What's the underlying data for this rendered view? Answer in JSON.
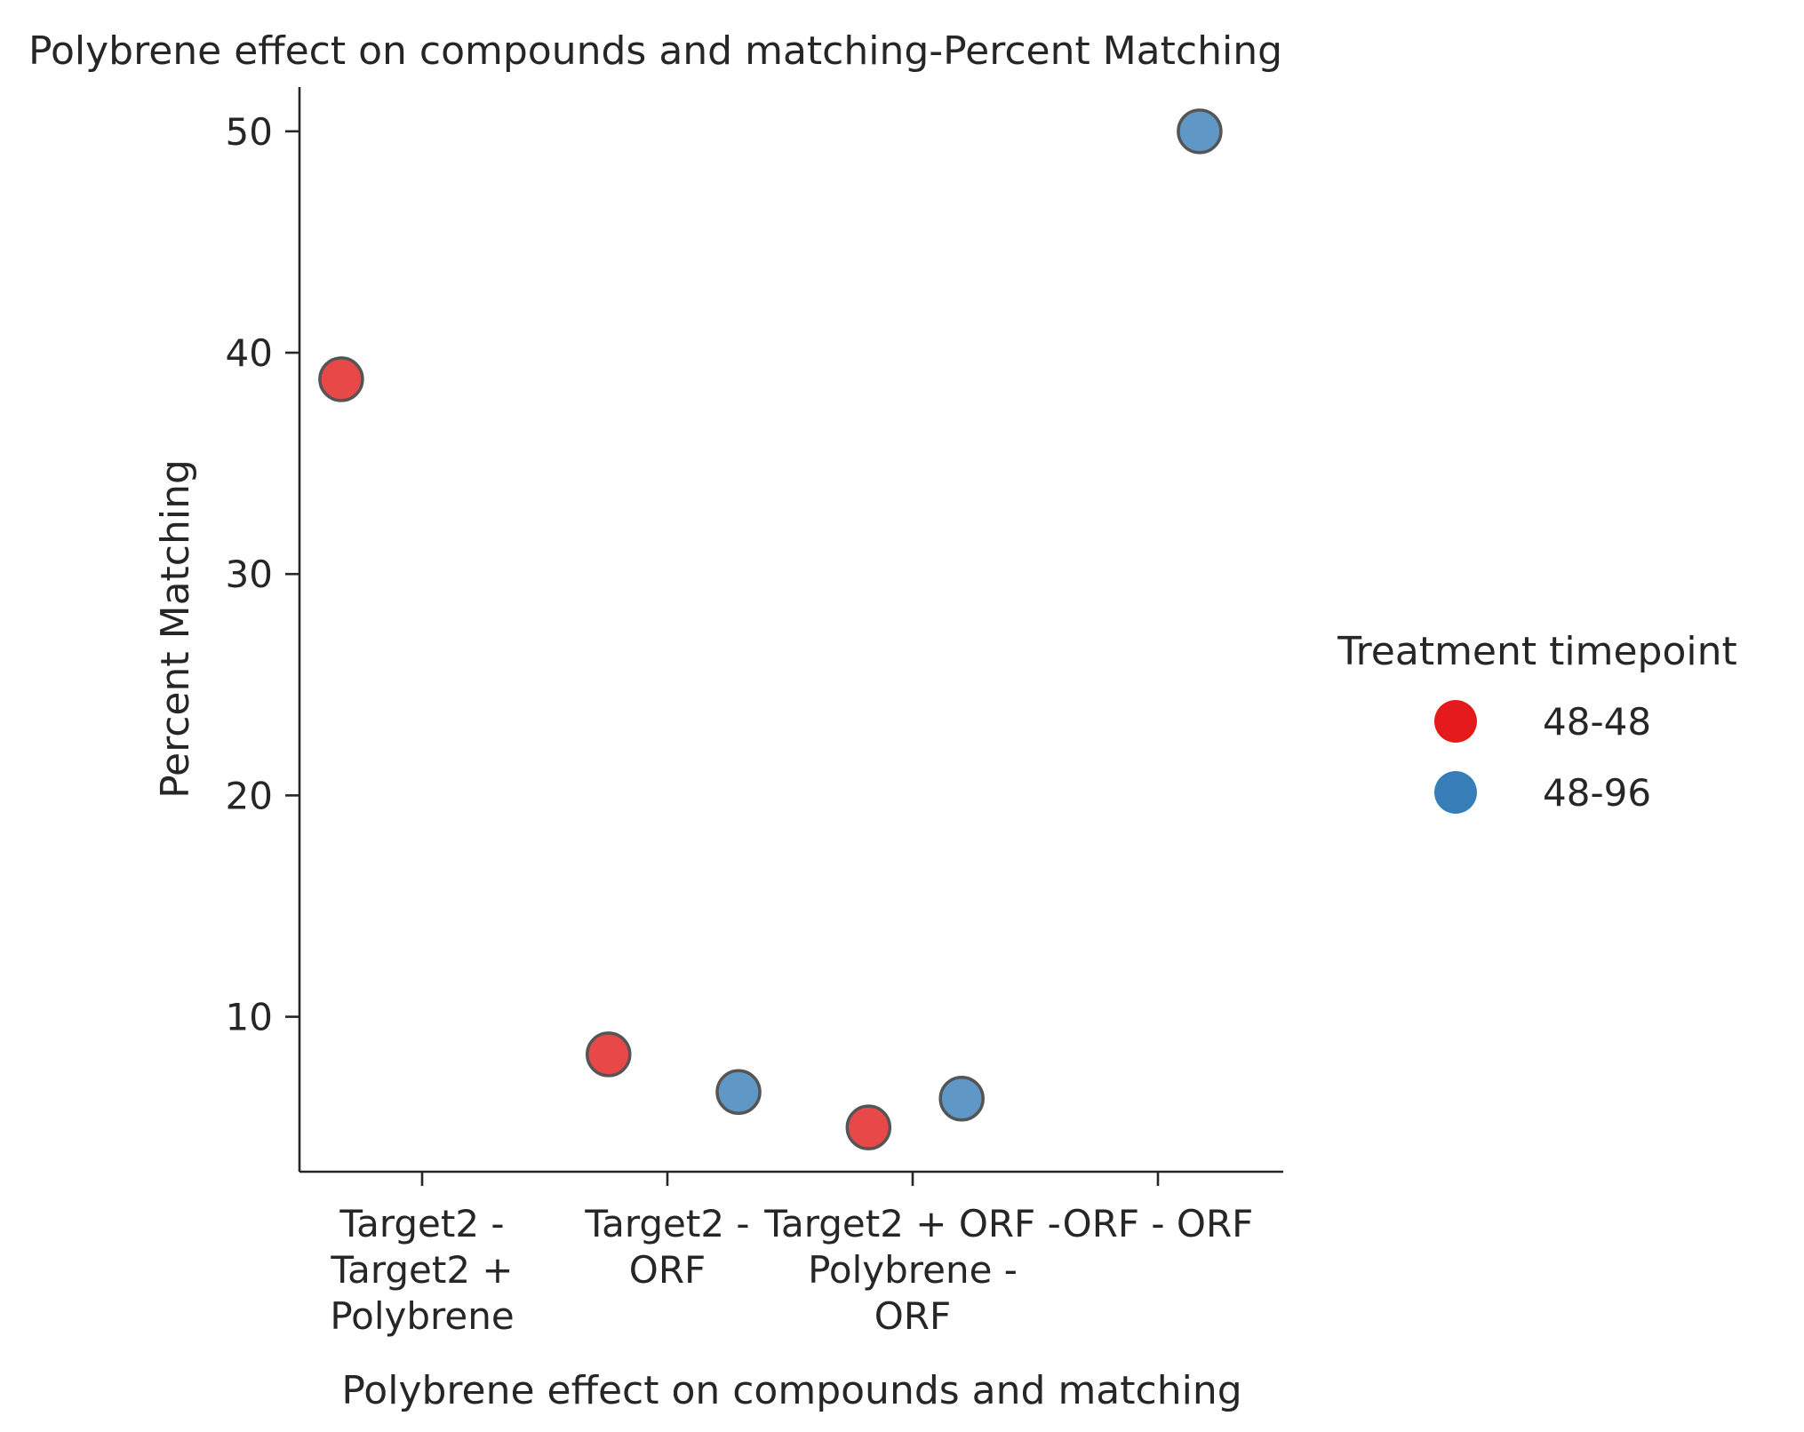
{
  "chart_data": {
    "type": "scatter",
    "title": "Polybrene effect on compounds and matching-Percent Matching",
    "xlabel": "Polybrene effect on compounds and matching",
    "ylabel": "Percent Matching",
    "categories": [
      [
        "Target2 -",
        "Target2 +",
        "Polybrene"
      ],
      [
        "Target2 -",
        "ORF"
      ],
      [
        "Target2 + ORF -",
        "Polybrene -",
        "ORF"
      ],
      [
        "ORF - ORF"
      ]
    ],
    "yticks": [
      10,
      20,
      30,
      40,
      50
    ],
    "ylim": [
      3,
      52
    ],
    "legend": {
      "title": "Treatment timepoint",
      "placement": "right",
      "entries": [
        "48-48",
        "48-96"
      ]
    },
    "series": [
      {
        "name": "48-48",
        "color": "#e41a1c",
        "points": [
          {
            "category": 0,
            "offset": -0.33,
            "y": 38.8
          },
          {
            "category": 1,
            "offset": -0.24,
            "y": 8.3
          },
          {
            "category": 2,
            "offset": -0.18,
            "y": 5.0
          }
        ]
      },
      {
        "name": "48-96",
        "color": "#377eb8",
        "points": [
          {
            "category": 1,
            "offset": 0.29,
            "y": 6.6
          },
          {
            "category": 2,
            "offset": 0.2,
            "y": 6.3
          },
          {
            "category": 3,
            "offset": 0.17,
            "y": 50.0
          }
        ]
      }
    ]
  }
}
